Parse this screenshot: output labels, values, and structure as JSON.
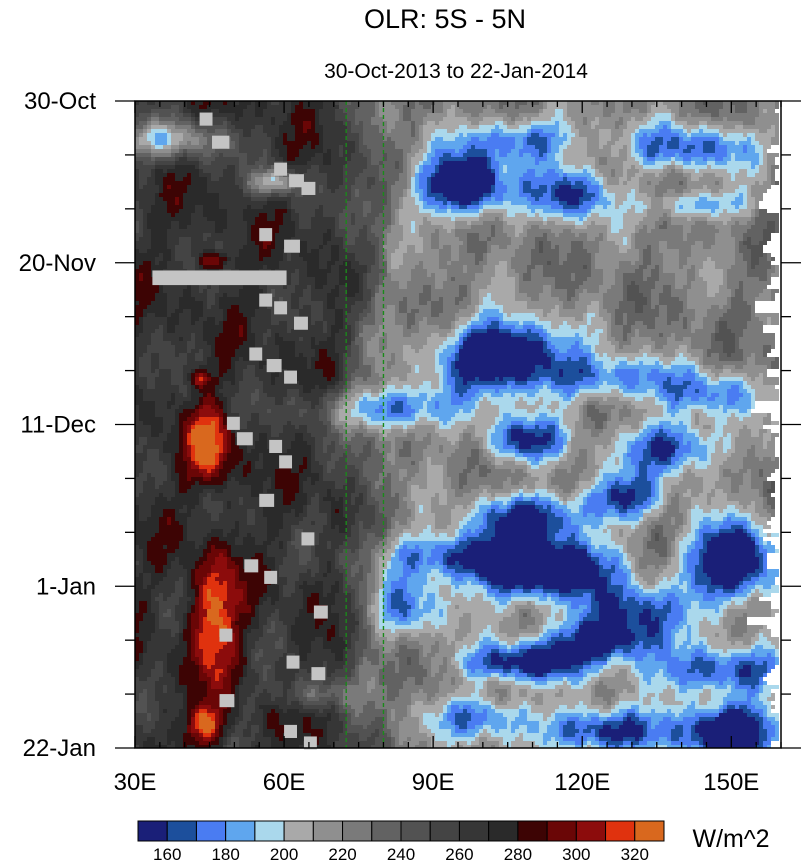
{
  "chart_data": {
    "type": "heatmap",
    "title": "OLR: 5S - 5N",
    "subtitle": "30-Oct-2013 to 22-Jan-2014",
    "units": "W/m^2",
    "x_range": [
      30,
      160
    ],
    "x_ticks": [
      {
        "value": 30,
        "label": "30E"
      },
      {
        "value": 60,
        "label": "60E"
      },
      {
        "value": 90,
        "label": "90E"
      },
      {
        "value": 120,
        "label": "120E"
      },
      {
        "value": 150,
        "label": "150E"
      }
    ],
    "y_range_days": [
      0,
      84
    ],
    "y_ticks": [
      {
        "day": 0,
        "label": "30-Oct"
      },
      {
        "day": 21,
        "label": "20-Nov"
      },
      {
        "day": 42,
        "label": "11-Dec"
      },
      {
        "day": 63,
        "label": "1-Jan"
      },
      {
        "day": 84,
        "label": "22-Jan"
      }
    ],
    "reference_lines_lon": [
      72.5,
      80
    ],
    "contour_levels": [
      160,
      170,
      180,
      190,
      200,
      210,
      220,
      230,
      240,
      250,
      260,
      270,
      280,
      290,
      300,
      310,
      320
    ],
    "colorbar_labels": [
      "160",
      "180",
      "200",
      "220",
      "240",
      "260",
      "280",
      "300",
      "320"
    ],
    "colors": [
      "#1a1f78",
      "#1c4f9c",
      "#4a7cf2",
      "#5fa6ee",
      "#aad8ec",
      "#a9a9a9",
      "#8f8f8f",
      "#7a7a7a",
      "#626262",
      "#525252",
      "#444444",
      "#363636",
      "#2a2a2a",
      "#3d0404",
      "#6a0606",
      "#8c0c0c",
      "#e0320e",
      "#d9681e"
    ],
    "missing_color": "#c4c4c4",
    "features": [
      {
        "type": "convection",
        "lon": 36,
        "day": 5.0,
        "rlon": 12.0,
        "rday": 2.5,
        "depth": 65
      },
      {
        "type": "convection",
        "lon": 58,
        "day": 10.5,
        "rlon": 4.5,
        "rday": 1.8,
        "depth": 70
      },
      {
        "type": "convection",
        "lon": 96,
        "day": 11.0,
        "rlon": 9.0,
        "rday": 4.0,
        "depth": 100
      },
      {
        "type": "convection",
        "lon": 118,
        "day": 12.0,
        "rlon": 8.0,
        "rday": 3.5,
        "depth": 70
      },
      {
        "type": "convection",
        "lon": 108,
        "day": 5.0,
        "rlon": 12.0,
        "rday": 3.0,
        "depth": 55
      },
      {
        "type": "convection",
        "lon": 142,
        "day": 6.0,
        "rlon": 14.0,
        "rday": 3.0,
        "depth": 55
      },
      {
        "type": "convection",
        "lon": 143,
        "day": 13.5,
        "rlon": 10.0,
        "rday": 2.0,
        "depth": 45
      },
      {
        "type": "convection",
        "lon": 104,
        "day": 33.0,
        "rlon": 12.0,
        "rday": 4.5,
        "depth": 105
      },
      {
        "type": "convection",
        "lon": 80,
        "day": 40.0,
        "rlon": 14.0,
        "rday": 3.0,
        "depth": 65
      },
      {
        "type": "convection",
        "lon": 125,
        "day": 36.0,
        "rlon": 14.0,
        "rday": 3.0,
        "depth": 50
      },
      {
        "type": "convection",
        "lon": 146,
        "day": 38.0,
        "rlon": 10.0,
        "rday": 3.0,
        "depth": 45
      },
      {
        "type": "convection",
        "lon": 108,
        "day": 44.0,
        "rlon": 8.0,
        "rday": 3.0,
        "depth": 70
      },
      {
        "type": "convection",
        "lon": 138,
        "day": 45.0,
        "rlon": 10.0,
        "rday": 3.5,
        "depth": 70
      },
      {
        "type": "convection",
        "lon": 110,
        "day": 54.0,
        "rlon": 12.0,
        "rday": 3.0,
        "depth": 70
      },
      {
        "type": "convection",
        "lon": 128,
        "day": 51.5,
        "rlon": 8.0,
        "rday": 3.0,
        "depth": 60
      },
      {
        "type": "convection",
        "lon": 150,
        "day": 60.0,
        "rlon": 9.0,
        "rday": 5.0,
        "depth": 105
      },
      {
        "type": "convection",
        "lon": 112,
        "day": 61.0,
        "rlon": 14.0,
        "rday": 4.0,
        "depth": 100
      },
      {
        "type": "convection",
        "lon": 95,
        "day": 59.0,
        "rlon": 15.0,
        "rday": 3.0,
        "depth": 60
      },
      {
        "type": "convection",
        "lon": 130,
        "day": 66.0,
        "rlon": 10.0,
        "rday": 3.0,
        "depth": 55
      },
      {
        "type": "convection",
        "lon": 125,
        "day": 70.0,
        "rlon": 12.0,
        "rday": 3.0,
        "depth": 80
      },
      {
        "type": "convection",
        "lon": 108,
        "day": 73.0,
        "rlon": 12.0,
        "rday": 2.5,
        "depth": 75
      },
      {
        "type": "convection",
        "lon": 147,
        "day": 74.0,
        "rlon": 14.0,
        "rday": 3.0,
        "depth": 65
      },
      {
        "type": "convection",
        "lon": 150,
        "day": 82.0,
        "rlon": 10.0,
        "rday": 4.0,
        "depth": 100
      },
      {
        "type": "convection",
        "lon": 124,
        "day": 82.0,
        "rlon": 12.0,
        "rday": 3.0,
        "depth": 75
      },
      {
        "type": "convection",
        "lon": 100,
        "day": 80.0,
        "rlon": 10.0,
        "rday": 3.0,
        "depth": 55
      },
      {
        "type": "convection",
        "lon": 85,
        "day": 66.0,
        "rlon": 8.0,
        "rday": 4.0,
        "depth": 45
      },
      {
        "type": "convection",
        "lon": 66,
        "day": 77.0,
        "rlon": 8.0,
        "rday": 2.0,
        "depth": 35
      },
      {
        "type": "warm",
        "lon": 45,
        "day": 45.0,
        "rlon": 4.5,
        "rday": 5.0,
        "depth": 60
      },
      {
        "type": "warm",
        "lon": 46,
        "day": 67.0,
        "rlon": 5.0,
        "rday": 8.0,
        "depth": 60
      },
      {
        "type": "warm",
        "lon": 44,
        "day": 81.0,
        "rlon": 4.0,
        "rday": 2.5,
        "depth": 55
      },
      {
        "type": "warm",
        "lon": 46,
        "day": 20.8,
        "rlon": 3.0,
        "rday": 1.3,
        "depth": 45
      },
      {
        "type": "warm",
        "lon": 43,
        "day": 36.0,
        "rlon": 2.5,
        "rday": 1.2,
        "depth": 40
      }
    ],
    "missing_blocks": [
      {
        "lon": 43,
        "day": 1.5,
        "w": 2.6,
        "h": 1.7
      },
      {
        "lon": 45.5,
        "day": 4.5,
        "w": 3.5,
        "h": 1.7
      },
      {
        "lon": 58,
        "day": 8.0,
        "w": 2.6,
        "h": 1.7
      },
      {
        "lon": 61,
        "day": 9.5,
        "w": 3.0,
        "h": 1.7
      },
      {
        "lon": 63.5,
        "day": 10.5,
        "w": 2.8,
        "h": 1.7
      },
      {
        "lon": 55,
        "day": 16.5,
        "w": 2.6,
        "h": 1.7
      },
      {
        "lon": 60,
        "day": 18.0,
        "w": 3.2,
        "h": 1.7
      },
      {
        "lon": 33.5,
        "day": 22.0,
        "w": 27,
        "h": 1.9
      },
      {
        "lon": 55,
        "day": 25.0,
        "w": 2.6,
        "h": 1.7
      },
      {
        "lon": 58,
        "day": 26.0,
        "w": 2.6,
        "h": 1.7
      },
      {
        "lon": 62,
        "day": 28.0,
        "w": 2.8,
        "h": 1.7
      },
      {
        "lon": 53,
        "day": 32.0,
        "w": 2.6,
        "h": 1.7
      },
      {
        "lon": 56.5,
        "day": 33.5,
        "w": 3.0,
        "h": 1.7
      },
      {
        "lon": 60,
        "day": 35.0,
        "w": 2.6,
        "h": 1.7
      },
      {
        "lon": 48.5,
        "day": 41.0,
        "w": 2.6,
        "h": 1.7
      },
      {
        "lon": 50.5,
        "day": 43.0,
        "w": 3.2,
        "h": 1.7
      },
      {
        "lon": 57,
        "day": 44.0,
        "w": 2.6,
        "h": 1.7
      },
      {
        "lon": 59,
        "day": 46.0,
        "w": 2.6,
        "h": 1.7
      },
      {
        "lon": 55,
        "day": 51.0,
        "w": 3.0,
        "h": 1.7
      },
      {
        "lon": 63.5,
        "day": 56.0,
        "w": 2.6,
        "h": 1.7
      },
      {
        "lon": 52,
        "day": 59.5,
        "w": 2.8,
        "h": 1.7
      },
      {
        "lon": 56,
        "day": 61.0,
        "w": 2.6,
        "h": 1.7
      },
      {
        "lon": 66,
        "day": 65.5,
        "w": 2.8,
        "h": 1.7
      },
      {
        "lon": 47,
        "day": 68.5,
        "w": 2.6,
        "h": 1.7
      },
      {
        "lon": 60.5,
        "day": 72.0,
        "w": 2.6,
        "h": 1.7
      },
      {
        "lon": 65.5,
        "day": 73.5,
        "w": 2.8,
        "h": 1.7
      },
      {
        "lon": 47,
        "day": 77.0,
        "w": 3.0,
        "h": 1.7
      },
      {
        "lon": 60,
        "day": 81.0,
        "w": 2.6,
        "h": 1.7
      },
      {
        "lon": 64,
        "day": 82.5,
        "w": 2.6,
        "h": 1.7
      }
    ]
  }
}
